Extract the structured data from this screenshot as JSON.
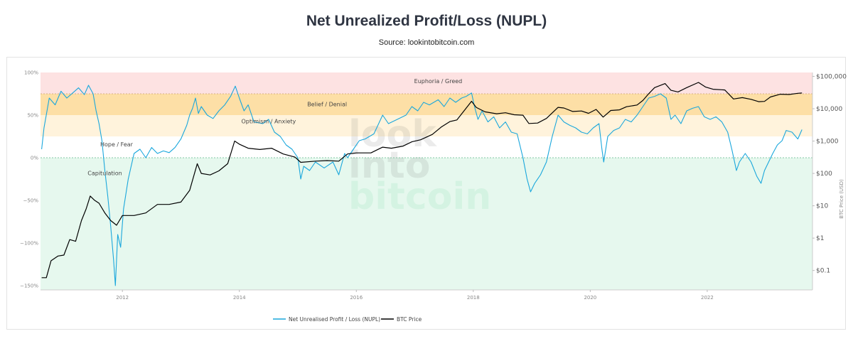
{
  "title": "Net Unrealized Profit/Loss (NUPL)",
  "subtitle": "Source: lookintobitcoin.com",
  "watermark": [
    "look",
    "into",
    "bitcoin"
  ],
  "colors": {
    "nupl": "#1aa7dc",
    "btc": "#000000",
    "euphoria": "#fde2e2",
    "belief": "#fddfa6",
    "optimism": "#fff3dc",
    "hope": "#ffffff",
    "capitulation": "#e6f8ee"
  },
  "chart_data": {
    "type": "line",
    "x_range": [
      2010.6,
      2023.8
    ],
    "x_ticks": [
      {
        "value": 2012,
        "label": "2012"
      },
      {
        "value": 2014,
        "label": "2014"
      },
      {
        "value": 2016,
        "label": "2016"
      },
      {
        "value": 2018,
        "label": "2018"
      },
      {
        "value": 2020,
        "label": "2020"
      },
      {
        "value": 2022,
        "label": "2022"
      }
    ],
    "y_left_range": [
      -1.55,
      1.0
    ],
    "y_left_ticks": [
      {
        "value": 1.0,
        "label": "100%"
      },
      {
        "value": 0.5,
        "label": "50%"
      },
      {
        "value": 0.0,
        "label": "0%"
      },
      {
        "value": -0.5,
        "label": "−50%"
      },
      {
        "value": -1.0,
        "label": "−100%"
      },
      {
        "value": -1.5,
        "label": "−150%"
      }
    ],
    "y_right_range_log10": [
      -1.6,
      5.12
    ],
    "y_right_title": "BTC Price (USD)",
    "y_right_ticks": [
      {
        "value": 100000,
        "label": "$100,000"
      },
      {
        "value": 10000,
        "label": "$10,000"
      },
      {
        "value": 1000,
        "label": "$1,000"
      },
      {
        "value": 100,
        "label": "$100"
      },
      {
        "value": 10,
        "label": "$10"
      },
      {
        "value": 1,
        "label": "$1"
      },
      {
        "value": 0.1,
        "label": "$0.1"
      }
    ],
    "zones": [
      {
        "name": "Euphoria / Greed",
        "from": 0.75,
        "to": 1.0,
        "color": "#fde2e2",
        "label_x": 2017.4,
        "label_y": 0.9
      },
      {
        "name": "Belief / Denial",
        "from": 0.5,
        "to": 0.75,
        "color": "#fddfa6",
        "label_x": 2015.5,
        "label_y": 0.63
      },
      {
        "name": "Optimism / Anxiety",
        "from": 0.25,
        "to": 0.5,
        "color": "#fff3dc",
        "label_x": 2014.5,
        "label_y": 0.43
      },
      {
        "name": "Hope / Fear",
        "from": 0.0,
        "to": 0.25,
        "color": "#ffffff",
        "label_x": 2011.9,
        "label_y": 0.16
      },
      {
        "name": "Capitulation",
        "from": -1.55,
        "to": 0.0,
        "color": "#e6f8ee",
        "label_x": 2011.7,
        "label_y": -0.18
      }
    ],
    "series": [
      {
        "name": "Net Unrealised Profit / Loss (NUPL)",
        "axis": "left",
        "color": "#1aa7dc",
        "points": [
          [
            2010.62,
            0.1
          ],
          [
            2010.66,
            0.35
          ],
          [
            2010.75,
            0.7
          ],
          [
            2010.85,
            0.62
          ],
          [
            2010.95,
            0.78
          ],
          [
            2011.05,
            0.7
          ],
          [
            2011.15,
            0.76
          ],
          [
            2011.25,
            0.82
          ],
          [
            2011.35,
            0.74
          ],
          [
            2011.42,
            0.85
          ],
          [
            2011.5,
            0.75
          ],
          [
            2011.55,
            0.55
          ],
          [
            2011.6,
            0.4
          ],
          [
            2011.65,
            0.2
          ],
          [
            2011.7,
            -0.15
          ],
          [
            2011.75,
            -0.45
          ],
          [
            2011.8,
            -0.8
          ],
          [
            2011.85,
            -1.2
          ],
          [
            2011.88,
            -1.5
          ],
          [
            2011.92,
            -0.9
          ],
          [
            2011.97,
            -1.05
          ],
          [
            2012.02,
            -0.6
          ],
          [
            2012.1,
            -0.25
          ],
          [
            2012.2,
            0.05
          ],
          [
            2012.3,
            0.1
          ],
          [
            2012.4,
            0.0
          ],
          [
            2012.5,
            0.12
          ],
          [
            2012.6,
            0.05
          ],
          [
            2012.7,
            0.08
          ],
          [
            2012.8,
            0.06
          ],
          [
            2012.9,
            0.12
          ],
          [
            2013.0,
            0.22
          ],
          [
            2013.1,
            0.38
          ],
          [
            2013.15,
            0.5
          ],
          [
            2013.2,
            0.58
          ],
          [
            2013.25,
            0.7
          ],
          [
            2013.3,
            0.52
          ],
          [
            2013.35,
            0.6
          ],
          [
            2013.45,
            0.5
          ],
          [
            2013.55,
            0.46
          ],
          [
            2013.65,
            0.55
          ],
          [
            2013.75,
            0.62
          ],
          [
            2013.85,
            0.72
          ],
          [
            2013.93,
            0.84
          ],
          [
            2014.0,
            0.7
          ],
          [
            2014.08,
            0.55
          ],
          [
            2014.15,
            0.62
          ],
          [
            2014.25,
            0.42
          ],
          [
            2014.4,
            0.4
          ],
          [
            2014.5,
            0.45
          ],
          [
            2014.6,
            0.3
          ],
          [
            2014.7,
            0.25
          ],
          [
            2014.8,
            0.15
          ],
          [
            2014.9,
            0.1
          ],
          [
            2015.0,
            0.0
          ],
          [
            2015.05,
            -0.25
          ],
          [
            2015.1,
            -0.1
          ],
          [
            2015.2,
            -0.15
          ],
          [
            2015.3,
            -0.05
          ],
          [
            2015.45,
            -0.12
          ],
          [
            2015.6,
            -0.05
          ],
          [
            2015.7,
            -0.2
          ],
          [
            2015.8,
            0.05
          ],
          [
            2015.85,
            0.0
          ],
          [
            2015.95,
            0.1
          ],
          [
            2016.05,
            0.2
          ],
          [
            2016.15,
            0.22
          ],
          [
            2016.3,
            0.28
          ],
          [
            2016.45,
            0.5
          ],
          [
            2016.55,
            0.4
          ],
          [
            2016.7,
            0.45
          ],
          [
            2016.85,
            0.5
          ],
          [
            2016.95,
            0.6
          ],
          [
            2017.05,
            0.55
          ],
          [
            2017.15,
            0.65
          ],
          [
            2017.25,
            0.62
          ],
          [
            2017.4,
            0.68
          ],
          [
            2017.5,
            0.6
          ],
          [
            2017.6,
            0.7
          ],
          [
            2017.7,
            0.65
          ],
          [
            2017.8,
            0.7
          ],
          [
            2017.88,
            0.72
          ],
          [
            2017.97,
            0.76
          ],
          [
            2018.02,
            0.6
          ],
          [
            2018.08,
            0.45
          ],
          [
            2018.15,
            0.55
          ],
          [
            2018.25,
            0.42
          ],
          [
            2018.35,
            0.48
          ],
          [
            2018.45,
            0.35
          ],
          [
            2018.55,
            0.42
          ],
          [
            2018.65,
            0.3
          ],
          [
            2018.75,
            0.28
          ],
          [
            2018.85,
            0.0
          ],
          [
            2018.92,
            -0.25
          ],
          [
            2018.98,
            -0.4
          ],
          [
            2019.05,
            -0.3
          ],
          [
            2019.15,
            -0.2
          ],
          [
            2019.25,
            -0.05
          ],
          [
            2019.35,
            0.25
          ],
          [
            2019.45,
            0.5
          ],
          [
            2019.55,
            0.42
          ],
          [
            2019.65,
            0.38
          ],
          [
            2019.75,
            0.35
          ],
          [
            2019.85,
            0.3
          ],
          [
            2019.95,
            0.28
          ],
          [
            2020.05,
            0.35
          ],
          [
            2020.15,
            0.4
          ],
          [
            2020.2,
            0.1
          ],
          [
            2020.23,
            -0.05
          ],
          [
            2020.3,
            0.25
          ],
          [
            2020.4,
            0.32
          ],
          [
            2020.5,
            0.35
          ],
          [
            2020.6,
            0.45
          ],
          [
            2020.7,
            0.42
          ],
          [
            2020.8,
            0.5
          ],
          [
            2020.9,
            0.6
          ],
          [
            2021.0,
            0.7
          ],
          [
            2021.1,
            0.72
          ],
          [
            2021.2,
            0.75
          ],
          [
            2021.3,
            0.7
          ],
          [
            2021.38,
            0.45
          ],
          [
            2021.45,
            0.5
          ],
          [
            2021.55,
            0.4
          ],
          [
            2021.65,
            0.55
          ],
          [
            2021.75,
            0.58
          ],
          [
            2021.85,
            0.6
          ],
          [
            2021.95,
            0.48
          ],
          [
            2022.05,
            0.45
          ],
          [
            2022.15,
            0.48
          ],
          [
            2022.25,
            0.42
          ],
          [
            2022.35,
            0.3
          ],
          [
            2022.42,
            0.1
          ],
          [
            2022.5,
            -0.15
          ],
          [
            2022.55,
            -0.05
          ],
          [
            2022.65,
            0.05
          ],
          [
            2022.75,
            -0.05
          ],
          [
            2022.85,
            -0.22
          ],
          [
            2022.92,
            -0.3
          ],
          [
            2022.98,
            -0.15
          ],
          [
            2023.05,
            -0.05
          ],
          [
            2023.12,
            0.05
          ],
          [
            2023.2,
            0.15
          ],
          [
            2023.28,
            0.2
          ],
          [
            2023.35,
            0.32
          ],
          [
            2023.45,
            0.3
          ],
          [
            2023.55,
            0.22
          ],
          [
            2023.62,
            0.33
          ]
        ]
      },
      {
        "name": "BTC Price",
        "axis": "right",
        "color": "#000000",
        "points": [
          [
            2010.62,
            0.06
          ],
          [
            2010.7,
            0.06
          ],
          [
            2010.78,
            0.2
          ],
          [
            2010.9,
            0.28
          ],
          [
            2011.0,
            0.3
          ],
          [
            2011.1,
            0.9
          ],
          [
            2011.2,
            0.8
          ],
          [
            2011.3,
            3.5
          ],
          [
            2011.38,
            8.0
          ],
          [
            2011.45,
            20.0
          ],
          [
            2011.52,
            15.0
          ],
          [
            2011.6,
            12.0
          ],
          [
            2011.7,
            6.0
          ],
          [
            2011.8,
            3.5
          ],
          [
            2011.9,
            2.5
          ],
          [
            2012.0,
            5.0
          ],
          [
            2012.2,
            5.0
          ],
          [
            2012.4,
            6.0
          ],
          [
            2012.6,
            11.0
          ],
          [
            2012.8,
            11.0
          ],
          [
            2013.0,
            13.0
          ],
          [
            2013.15,
            30.0
          ],
          [
            2013.28,
            200.0
          ],
          [
            2013.35,
            100.0
          ],
          [
            2013.5,
            90.0
          ],
          [
            2013.65,
            120.0
          ],
          [
            2013.8,
            200.0
          ],
          [
            2013.92,
            1000.0
          ],
          [
            2014.0,
            800.0
          ],
          [
            2014.15,
            600.0
          ],
          [
            2014.35,
            550.0
          ],
          [
            2014.55,
            600.0
          ],
          [
            2014.75,
            400.0
          ],
          [
            2014.95,
            320.0
          ],
          [
            2015.05,
            220.0
          ],
          [
            2015.3,
            240.0
          ],
          [
            2015.5,
            250.0
          ],
          [
            2015.7,
            240.0
          ],
          [
            2015.85,
            400.0
          ],
          [
            2016.0,
            430.0
          ],
          [
            2016.25,
            430.0
          ],
          [
            2016.45,
            650.0
          ],
          [
            2016.6,
            600.0
          ],
          [
            2016.8,
            700.0
          ],
          [
            2016.95,
            950.0
          ],
          [
            2017.1,
            1100.0
          ],
          [
            2017.3,
            1600.0
          ],
          [
            2017.45,
            2700.0
          ],
          [
            2017.6,
            4000.0
          ],
          [
            2017.72,
            4500.0
          ],
          [
            2017.85,
            9000.0
          ],
          [
            2017.97,
            17000.0
          ],
          [
            2018.05,
            11000.0
          ],
          [
            2018.2,
            8000.0
          ],
          [
            2018.4,
            7000.0
          ],
          [
            2018.55,
            7500.0
          ],
          [
            2018.7,
            6500.0
          ],
          [
            2018.85,
            6300.0
          ],
          [
            2018.95,
            3500.0
          ],
          [
            2019.1,
            3600.0
          ],
          [
            2019.25,
            5000.0
          ],
          [
            2019.45,
            11000.0
          ],
          [
            2019.55,
            10500.0
          ],
          [
            2019.7,
            8200.0
          ],
          [
            2019.85,
            8500.0
          ],
          [
            2019.97,
            7200.0
          ],
          [
            2020.1,
            9500.0
          ],
          [
            2020.22,
            5500.0
          ],
          [
            2020.35,
            8800.0
          ],
          [
            2020.5,
            9200.0
          ],
          [
            2020.62,
            11500.0
          ],
          [
            2020.8,
            13000.0
          ],
          [
            2020.9,
            18000.0
          ],
          [
            2021.0,
            29000.0
          ],
          [
            2021.1,
            45000.0
          ],
          [
            2021.28,
            60000.0
          ],
          [
            2021.38,
            37000.0
          ],
          [
            2021.5,
            33000.0
          ],
          [
            2021.65,
            45000.0
          ],
          [
            2021.85,
            65000.0
          ],
          [
            2021.97,
            47000.0
          ],
          [
            2022.1,
            40000.0
          ],
          [
            2022.3,
            38000.0
          ],
          [
            2022.45,
            20000.0
          ],
          [
            2022.6,
            22000.0
          ],
          [
            2022.75,
            19500.0
          ],
          [
            2022.88,
            16500.0
          ],
          [
            2022.98,
            16800.0
          ],
          [
            2023.08,
            23000.0
          ],
          [
            2023.25,
            28000.0
          ],
          [
            2023.4,
            27500.0
          ],
          [
            2023.55,
            30000.0
          ],
          [
            2023.62,
            30500.0
          ]
        ]
      }
    ],
    "legend": [
      {
        "label": "Net Unrealised Profit / Loss (NUPL)",
        "color": "#1aa7dc"
      },
      {
        "label": "BTC Price",
        "color": "#000000"
      }
    ],
    "legend_position": "bottom-center"
  }
}
